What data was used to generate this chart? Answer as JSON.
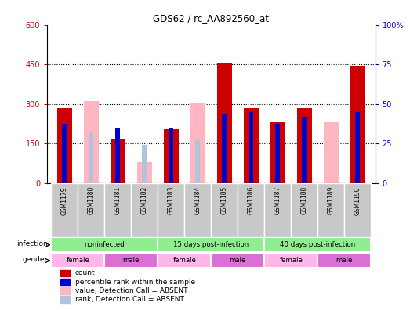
{
  "title": "GDS62 / rc_AA892560_at",
  "samples": [
    "GSM1179",
    "GSM1180",
    "GSM1181",
    "GSM1182",
    "GSM1183",
    "GSM1184",
    "GSM1185",
    "GSM1186",
    "GSM1187",
    "GSM1188",
    "GSM1189",
    "GSM1190"
  ],
  "count_present": [
    285,
    0,
    165,
    0,
    205,
    0,
    455,
    285,
    230,
    285,
    0,
    445
  ],
  "count_absent": [
    0,
    310,
    0,
    80,
    0,
    305,
    0,
    0,
    0,
    0,
    230,
    0
  ],
  "rank_present": [
    37,
    0,
    35,
    0,
    35,
    0,
    44,
    45,
    37,
    42,
    0,
    45
  ],
  "rank_absent": [
    0,
    32,
    0,
    24,
    0,
    27,
    0,
    0,
    0,
    0,
    0,
    0
  ],
  "ylim_left": [
    0,
    600
  ],
  "ylim_right": [
    0,
    100
  ],
  "yticks_left": [
    0,
    150,
    300,
    450,
    600
  ],
  "yticks_right": [
    0,
    25,
    50,
    75,
    100
  ],
  "color_count": "#CC0000",
  "color_rank": "#0000CC",
  "color_count_absent": "#FFB6C1",
  "color_rank_absent": "#B0C4DE",
  "left_color": "#CC0000",
  "right_color": "#0000CC",
  "infection_groups": [
    {
      "label": "noninfected",
      "start": 0,
      "end": 3
    },
    {
      "label": "15 days post-infection",
      "start": 4,
      "end": 7
    },
    {
      "label": "40 days post-infection",
      "start": 8,
      "end": 11
    }
  ],
  "gender_groups": [
    {
      "label": "female",
      "start": 0,
      "end": 1,
      "color": "#FFB6E8"
    },
    {
      "label": "male",
      "start": 2,
      "end": 3,
      "color": "#DA70D6"
    },
    {
      "label": "female",
      "start": 4,
      "end": 5,
      "color": "#FFB6E8"
    },
    {
      "label": "male",
      "start": 6,
      "end": 7,
      "color": "#DA70D6"
    },
    {
      "label": "female",
      "start": 8,
      "end": 9,
      "color": "#FFB6E8"
    },
    {
      "label": "male",
      "start": 10,
      "end": 11,
      "color": "#DA70D6"
    }
  ],
  "xtick_bg": "#C8C8C8",
  "infection_color": "#90EE90",
  "grid_color": "black",
  "grid_linestyle": ":"
}
